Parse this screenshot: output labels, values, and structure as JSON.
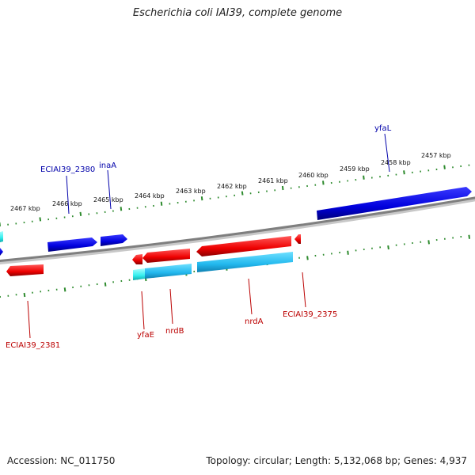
{
  "title": "Escherichia coli IAI39, complete genome",
  "footer": {
    "accession": "Accession: NC_011750",
    "summary": "Topology: circular; Length: 5,132,068 bp; Genes: 4,937"
  },
  "colors": {
    "forward_gene": "#0000ee",
    "reverse_gene": "#ee0000",
    "reverse_feature": "#22bbee",
    "backbone": "#8a8a8a",
    "tick": "#2e8b2e",
    "forward_label": "#0000aa",
    "reverse_label": "#bb0000"
  },
  "scale": {
    "ticks": [
      "2467 kbp",
      "2466 kbp",
      "2465 kbp",
      "2464 kbp",
      "2463 kbp",
      "2462 kbp",
      "2461 kbp",
      "2460 kbp",
      "2459 kbp",
      "2458 kbp",
      "2457 kbp"
    ]
  },
  "genes": {
    "forward": [
      "ECIAI39_2380",
      "inaA",
      "yfaL"
    ],
    "reverse": [
      "ECIAI39_2381",
      "yfaE",
      "nrdB",
      "nrdA",
      "ECIAI39_2375"
    ]
  }
}
